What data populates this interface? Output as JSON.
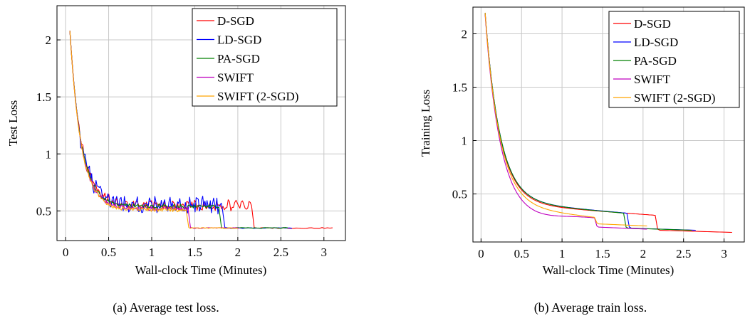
{
  "chart_data": [
    {
      "type": "line",
      "caption": "(a) Average test loss.",
      "xlabel": "Wall-clock Time (Minutes)",
      "ylabel": "Test Loss",
      "xlim": [
        -0.1,
        3.25
      ],
      "ylim": [
        0.24,
        2.3
      ],
      "xticks": [
        0,
        0.5,
        1,
        1.5,
        2,
        2.5,
        3
      ],
      "xtick_labels": [
        "0",
        "0.5",
        "1",
        "1.5",
        "2",
        "2.5",
        "3"
      ],
      "yticks": [
        0.5,
        1,
        1.5,
        2
      ],
      "ytick_labels": [
        "0.5",
        "1",
        "1.5",
        "2"
      ],
      "grid": true,
      "legend_position": "top-right",
      "series": [
        {
          "name": "D-SGD",
          "color": "#ff0000",
          "start": 0.05,
          "decay_end": 0.75,
          "plateau_end": 2.16,
          "end": 3.1,
          "plateau_level": 0.55,
          "final_level": 0.35,
          "noise": 0.05
        },
        {
          "name": "LD-SGD",
          "color": "#0000ff",
          "start": 0.05,
          "decay_end": 0.75,
          "plateau_end": 1.82,
          "end": 2.63,
          "plateau_level": 0.55,
          "final_level": 0.35,
          "noise": 0.08
        },
        {
          "name": "PA-SGD",
          "color": "#008000",
          "start": 0.05,
          "decay_end": 0.75,
          "plateau_end": 1.78,
          "end": 2.58,
          "plateau_level": 0.54,
          "final_level": 0.35,
          "noise": 0.02
        },
        {
          "name": "SWIFT",
          "color": "#bf00bf",
          "start": 0.05,
          "decay_end": 0.75,
          "plateau_end": 1.42,
          "end": 2.02,
          "plateau_level": 0.52,
          "final_level": 0.35,
          "noise": 0.02
        },
        {
          "name": "SWIFT (2-SGD)",
          "color": "#ffa500",
          "start": 0.05,
          "decay_end": 0.75,
          "plateau_end": 1.4,
          "end": 2.0,
          "plateau_level": 0.51,
          "final_level": 0.35,
          "noise": 0.02
        }
      ]
    },
    {
      "type": "line",
      "caption": "(b) Average train loss.",
      "xlabel": "Wall-clock Time (Minutes)",
      "ylabel": "Training Loss",
      "xlim": [
        -0.1,
        3.25
      ],
      "ylim": [
        0.05,
        2.25
      ],
      "xticks": [
        0,
        0.5,
        1,
        1.5,
        2,
        2.5,
        3
      ],
      "xtick_labels": [
        "0",
        "0.5",
        "1",
        "1.5",
        "2",
        "2.5",
        "3"
      ],
      "yticks": [
        0.5,
        1,
        1.5,
        2
      ],
      "ytick_labels": [
        "0.5",
        "1",
        "1.5",
        "2"
      ],
      "grid": true,
      "legend_position": "top-right",
      "series": [
        {
          "name": "D-SGD",
          "color": "#ff0000",
          "start": 0.05,
          "decay_end": 1.8,
          "plateau_end": 2.15,
          "end": 3.1,
          "plateau_level": 0.3,
          "final_level": 0.14,
          "noise": 0
        },
        {
          "name": "LD-SGD",
          "color": "#0000ff",
          "start": 0.05,
          "decay_end": 1.8,
          "plateau_end": 1.8,
          "end": 2.65,
          "plateau_level": 0.32,
          "final_level": 0.16,
          "noise": 0
        },
        {
          "name": "PA-SGD",
          "color": "#008000",
          "start": 0.05,
          "decay_end": 1.76,
          "plateau_end": 1.76,
          "end": 2.6,
          "plateau_level": 0.32,
          "final_level": 0.16,
          "noise": 0
        },
        {
          "name": "SWIFT",
          "color": "#bf00bf",
          "start": 0.05,
          "decay_end": 1.4,
          "plateau_end": 1.4,
          "end": 2.05,
          "plateau_level": 0.28,
          "final_level": 0.17,
          "noise": 0
        },
        {
          "name": "SWIFT (2-SGD)",
          "color": "#ffa500",
          "start": 0.05,
          "decay_end": 1.4,
          "plateau_end": 1.4,
          "end": 2.05,
          "plateau_level": 0.28,
          "final_level": 0.2,
          "noise": 0
        }
      ]
    }
  ]
}
